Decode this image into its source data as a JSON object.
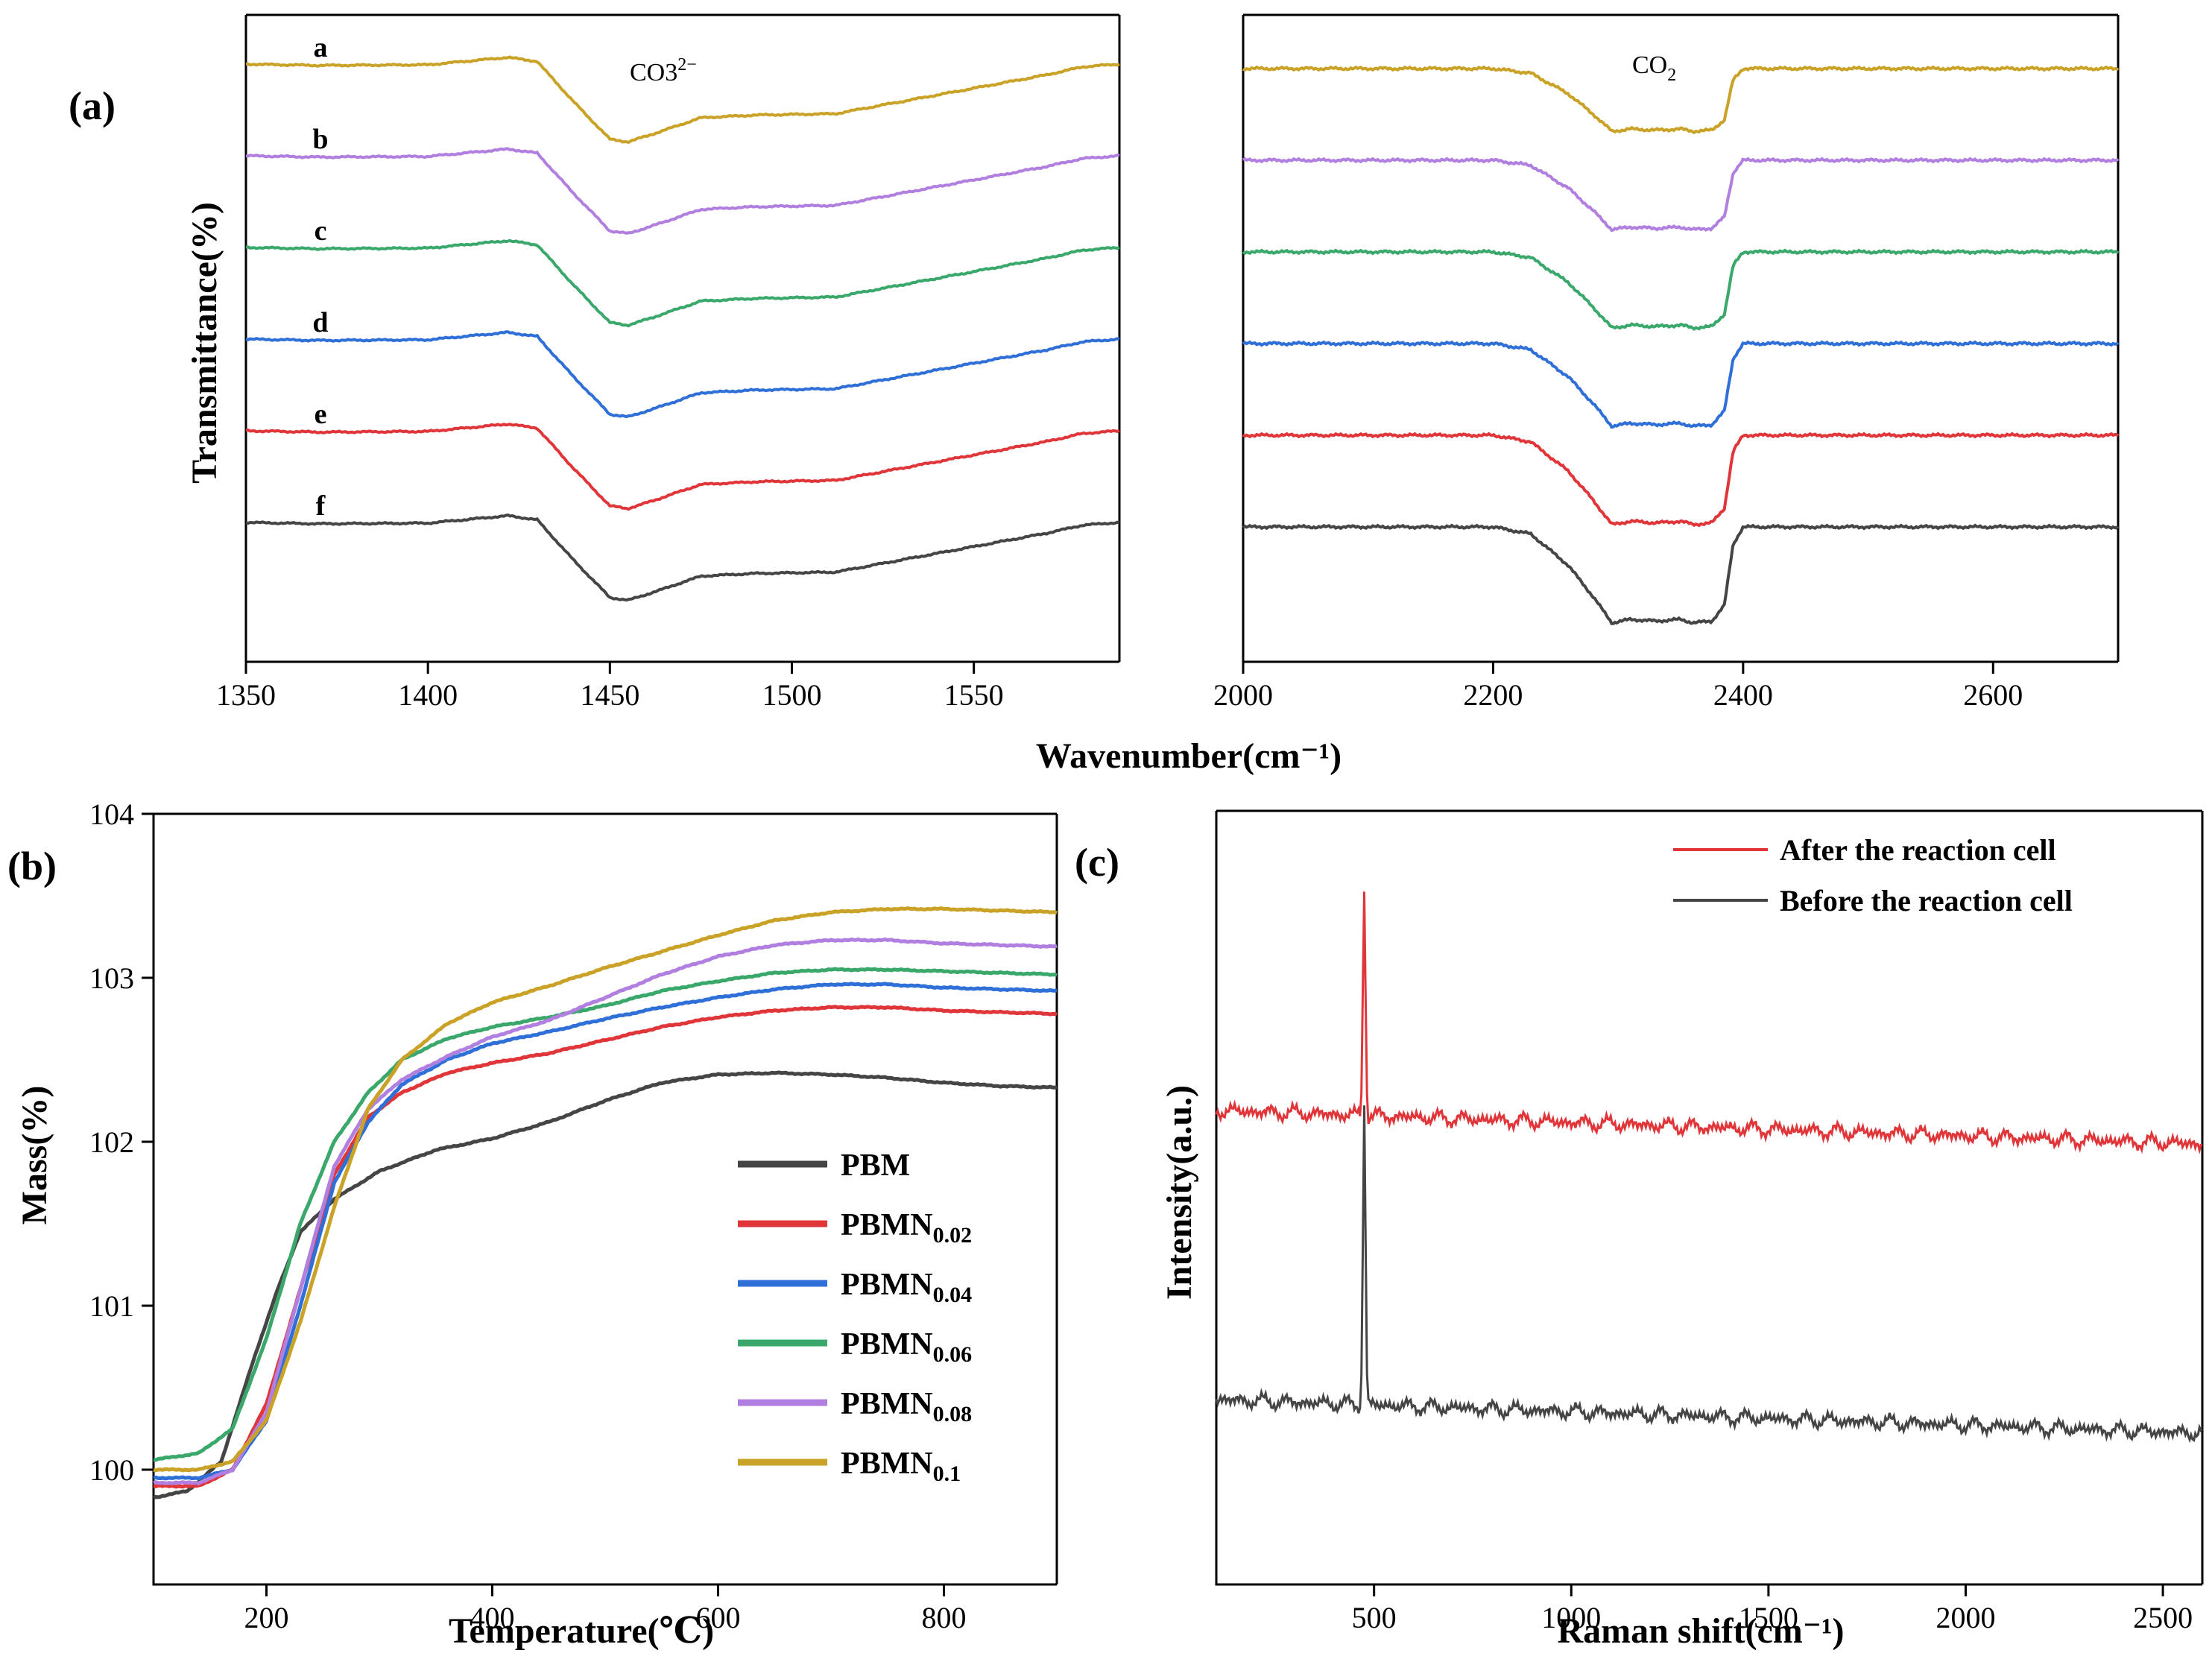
{
  "chart_data": [
    {
      "id": "a-left",
      "type": "line",
      "panel_label": "(a)",
      "xlabel": "Wavenumber(cm⁻¹)",
      "ylabel": "Transmittance(%)",
      "annotation_base": "CO3",
      "annotation_sup": "2−",
      "xlim": [
        1350,
        1590
      ],
      "xticks": [
        1350,
        1400,
        1450,
        1500,
        1550
      ],
      "series": [
        {
          "name": "a",
          "color": "#c9a227",
          "offset": 0
        },
        {
          "name": "b",
          "color": "#b07fe0",
          "offset": 1
        },
        {
          "name": "c",
          "color": "#3aa86b",
          "offset": 2
        },
        {
          "name": "d",
          "color": "#2f6fd8",
          "offset": 3
        },
        {
          "name": "e",
          "color": "#e0363a",
          "offset": 4
        },
        {
          "name": "f",
          "color": "#454545",
          "offset": 5
        }
      ],
      "profile": {
        "x": [
          1350,
          1370,
          1400,
          1410,
          1422,
          1430,
          1440,
          1450,
          1455,
          1462,
          1475,
          1490,
          1512,
          1530,
          1550,
          1570,
          1580,
          1590
        ],
        "y": [
          0,
          0.01,
          0.005,
          -0.02,
          -0.05,
          -0.02,
          0.28,
          0.56,
          0.58,
          0.52,
          0.4,
          0.38,
          0.37,
          0.28,
          0.18,
          0.08,
          0.02,
          0
        ]
      }
    },
    {
      "id": "a-right",
      "type": "line",
      "annotation_base": "CO",
      "annotation_sub": "2",
      "xlim": [
        2000,
        2700
      ],
      "xticks": [
        2000,
        2200,
        2400,
        2600
      ],
      "series": [
        {
          "name": "a",
          "color": "#c9a227",
          "offset": 0
        },
        {
          "name": "b",
          "color": "#b07fe0",
          "offset": 1
        },
        {
          "name": "c",
          "color": "#3aa86b",
          "offset": 2
        },
        {
          "name": "d",
          "color": "#2f6fd8",
          "offset": 3
        },
        {
          "name": "e",
          "color": "#e0363a",
          "offset": 4
        },
        {
          "name": "f",
          "color": "#454545",
          "offset": 5
        }
      ],
      "profile": {
        "x": [
          2000,
          2200,
          2230,
          2260,
          2280,
          2295,
          2310,
          2330,
          2350,
          2360,
          2375,
          2385,
          2392,
          2400,
          2700
        ],
        "y": [
          0,
          0,
          0.04,
          0.22,
          0.4,
          0.55,
          0.53,
          0.54,
          0.53,
          0.55,
          0.54,
          0.45,
          0.1,
          0,
          0
        ]
      }
    },
    {
      "id": "b",
      "type": "line",
      "panel_label": "(b)",
      "xlabel": "Temperature(℃)",
      "ylabel": "Mass(%)",
      "xlim": [
        100,
        900
      ],
      "ylim": [
        99.3,
        104
      ],
      "xticks": [
        200,
        400,
        600,
        800
      ],
      "yticks": [
        100,
        101,
        102,
        103,
        104
      ],
      "legend_position": "lower-right",
      "series": [
        {
          "name": "PBM",
          "base": "PBM",
          "sub": "",
          "color": "#454545",
          "x": [
            100,
            130,
            160,
            190,
            210,
            230,
            260,
            300,
            350,
            400,
            450,
            500,
            550,
            600,
            650,
            700,
            750,
            800,
            850,
            900
          ],
          "y": [
            99.83,
            99.87,
            100.05,
            100.7,
            101.1,
            101.45,
            101.65,
            101.82,
            101.95,
            102.02,
            102.12,
            102.25,
            102.36,
            102.41,
            102.42,
            102.41,
            102.39,
            102.36,
            102.34,
            102.33
          ]
        },
        {
          "name": "PBMN0.02",
          "base": "PBMN",
          "sub": "0.02",
          "color": "#e0363a",
          "x": [
            100,
            140,
            170,
            200,
            230,
            260,
            290,
            320,
            360,
            400,
            450,
            500,
            550,
            600,
            650,
            700,
            750,
            800,
            850,
            900
          ],
          "y": [
            99.9,
            99.9,
            100.0,
            100.4,
            101.1,
            101.8,
            102.15,
            102.3,
            102.42,
            102.48,
            102.54,
            102.62,
            102.7,
            102.76,
            102.8,
            102.82,
            102.82,
            102.8,
            102.79,
            102.78
          ]
        },
        {
          "name": "PBMN0.04",
          "base": "PBMN",
          "sub": "0.04",
          "color": "#2f6fd8",
          "x": [
            100,
            140,
            170,
            200,
            230,
            260,
            290,
            320,
            360,
            400,
            450,
            500,
            550,
            600,
            650,
            700,
            750,
            800,
            850,
            900
          ],
          "y": [
            99.95,
            99.95,
            100.0,
            100.3,
            101.0,
            101.75,
            102.12,
            102.35,
            102.5,
            102.6,
            102.67,
            102.75,
            102.82,
            102.88,
            102.93,
            102.96,
            102.96,
            102.94,
            102.93,
            102.92
          ]
        },
        {
          "name": "PBMN0.06",
          "base": "PBMN",
          "sub": "0.06",
          "color": "#3aa86b",
          "x": [
            100,
            140,
            170,
            200,
            230,
            260,
            290,
            320,
            360,
            400,
            450,
            500,
            550,
            600,
            650,
            700,
            750,
            800,
            850,
            900
          ],
          "y": [
            100.06,
            100.1,
            100.25,
            100.8,
            101.5,
            102.0,
            102.3,
            102.5,
            102.63,
            102.7,
            102.76,
            102.83,
            102.92,
            102.98,
            103.03,
            103.05,
            103.05,
            103.04,
            103.03,
            103.02
          ]
        },
        {
          "name": "PBMN0.08",
          "base": "PBMN",
          "sub": "0.08",
          "color": "#b07fe0",
          "x": [
            100,
            140,
            170,
            200,
            230,
            260,
            290,
            320,
            360,
            400,
            450,
            500,
            550,
            600,
            650,
            700,
            750,
            800,
            850,
            900
          ],
          "y": [
            99.92,
            99.92,
            100.0,
            100.35,
            101.1,
            101.85,
            102.2,
            102.38,
            102.52,
            102.64,
            102.74,
            102.88,
            103.02,
            103.13,
            103.2,
            103.23,
            103.23,
            103.21,
            103.2,
            103.19
          ]
        },
        {
          "name": "PBMN0.1",
          "base": "PBMN",
          "sub": "0.1",
          "color": "#c9a227",
          "x": [
            100,
            140,
            170,
            200,
            230,
            260,
            290,
            320,
            360,
            400,
            450,
            500,
            550,
            600,
            650,
            700,
            750,
            800,
            850,
            900
          ],
          "y": [
            100.0,
            100.0,
            100.05,
            100.3,
            100.9,
            101.6,
            102.2,
            102.5,
            102.72,
            102.85,
            102.95,
            103.06,
            103.16,
            103.26,
            103.35,
            103.4,
            103.42,
            103.42,
            103.41,
            103.4
          ]
        }
      ]
    },
    {
      "id": "c",
      "type": "line",
      "panel_label": "(c)",
      "xlabel": "Raman shift(cm⁻¹)",
      "ylabel": "Intensity(a.u.)",
      "xlim": [
        100,
        2600
      ],
      "xticks": [
        500,
        1000,
        1500,
        2000,
        2500
      ],
      "legend_position": "top-right",
      "series": [
        {
          "name": "After  the reaction cell",
          "color": "#e0363a",
          "peak_x": 475,
          "peak_height": 0.62,
          "start_y": 0.0,
          "end_y": -0.1
        },
        {
          "name": "Before the reaction cell",
          "color": "#454545",
          "peak_x": 475,
          "peak_height": 0.8,
          "start_y": 0.0,
          "end_y": -0.1
        }
      ]
    }
  ]
}
